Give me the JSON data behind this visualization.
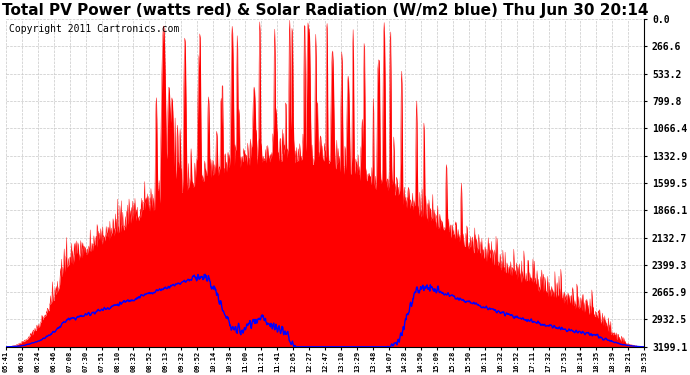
{
  "title": "Total PV Power (watts red) & Solar Radiation (W/m2 blue) Thu Jun 30 20:14",
  "copyright": "Copyright 2011 Cartronics.com",
  "ylabel_right": [
    "3199.1",
    "2932.5",
    "2665.9",
    "2399.3",
    "2132.7",
    "1866.1",
    "1599.5",
    "1332.9",
    "1066.4",
    "799.8",
    "533.2",
    "266.6",
    "0.0"
  ],
  "ymax": 3199.1,
  "ymin": 0.0,
  "yticks": [
    0.0,
    266.6,
    533.2,
    799.8,
    1066.4,
    1332.9,
    1599.5,
    1866.1,
    2132.7,
    2399.3,
    2665.9,
    2932.5,
    3199.1
  ],
  "xtick_labels": [
    "05:41",
    "06:03",
    "06:24",
    "06:46",
    "07:08",
    "07:30",
    "07:51",
    "08:10",
    "08:32",
    "08:52",
    "09:13",
    "09:32",
    "09:52",
    "10:14",
    "10:38",
    "11:00",
    "11:21",
    "11:41",
    "12:05",
    "12:27",
    "12:47",
    "13:10",
    "13:29",
    "13:48",
    "14:07",
    "14:28",
    "14:50",
    "15:09",
    "15:28",
    "15:50",
    "16:11",
    "16:32",
    "16:52",
    "17:11",
    "17:32",
    "17:53",
    "18:14",
    "18:35",
    "18:39",
    "19:21",
    "19:53"
  ],
  "background_color": "#ffffff",
  "grid_color": "#c8c8c8",
  "pv_color": "#ff0000",
  "solar_color": "#0000ff",
  "title_fontsize": 11,
  "copyright_fontsize": 7
}
